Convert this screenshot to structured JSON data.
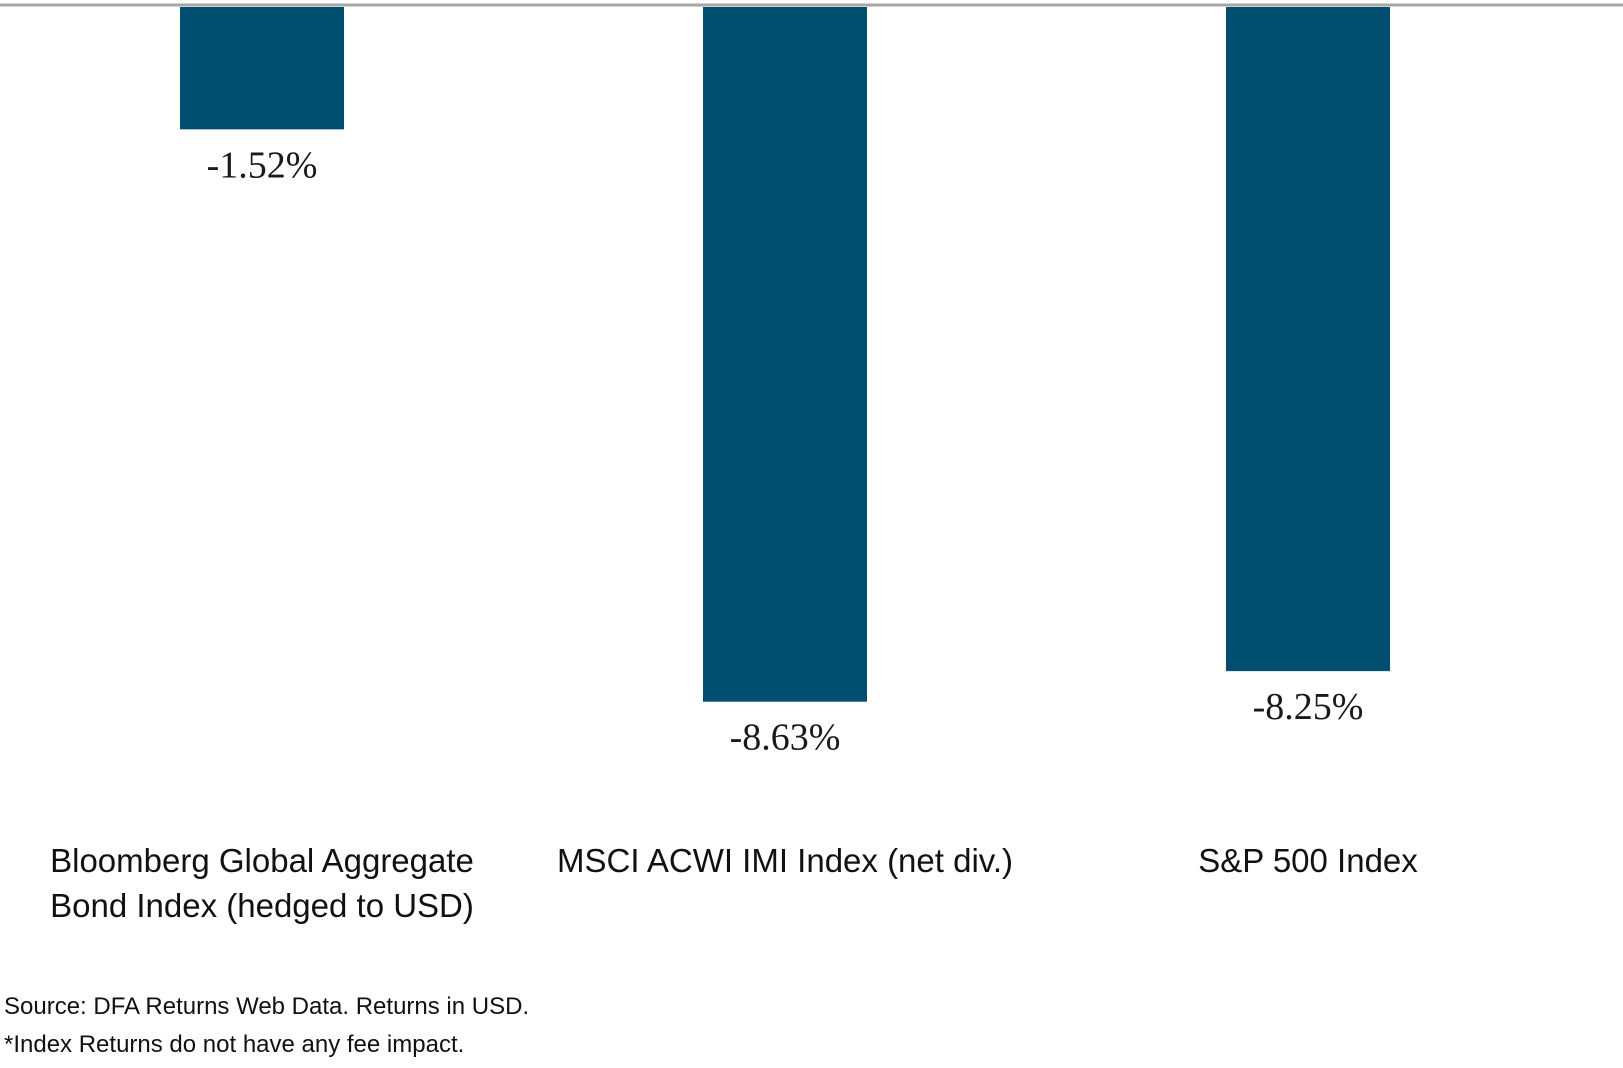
{
  "chart_data": {
    "type": "bar",
    "categories": [
      [
        "Bloomberg Global Aggregate",
        "Bond Index (hedged to USD)"
      ],
      [
        "MSCI ACWI IMI Index (net div.)"
      ],
      [
        "S&P 500 Index"
      ]
    ],
    "values": [
      -1.52,
      -8.63,
      -8.25
    ],
    "data_labels": [
      "-1.52%",
      "-8.63%",
      "-8.25%"
    ],
    "bar_color": "#004f71",
    "baseline_color": "#a6a6a6",
    "ylim": [
      -9,
      0
    ],
    "title": "",
    "xlabel": "",
    "ylabel": "",
    "grid": false,
    "legend": "none"
  },
  "notes": {
    "source": "Source: DFA Returns Web Data. Returns in USD.",
    "fee": "*Index Returns do not have any fee impact."
  }
}
